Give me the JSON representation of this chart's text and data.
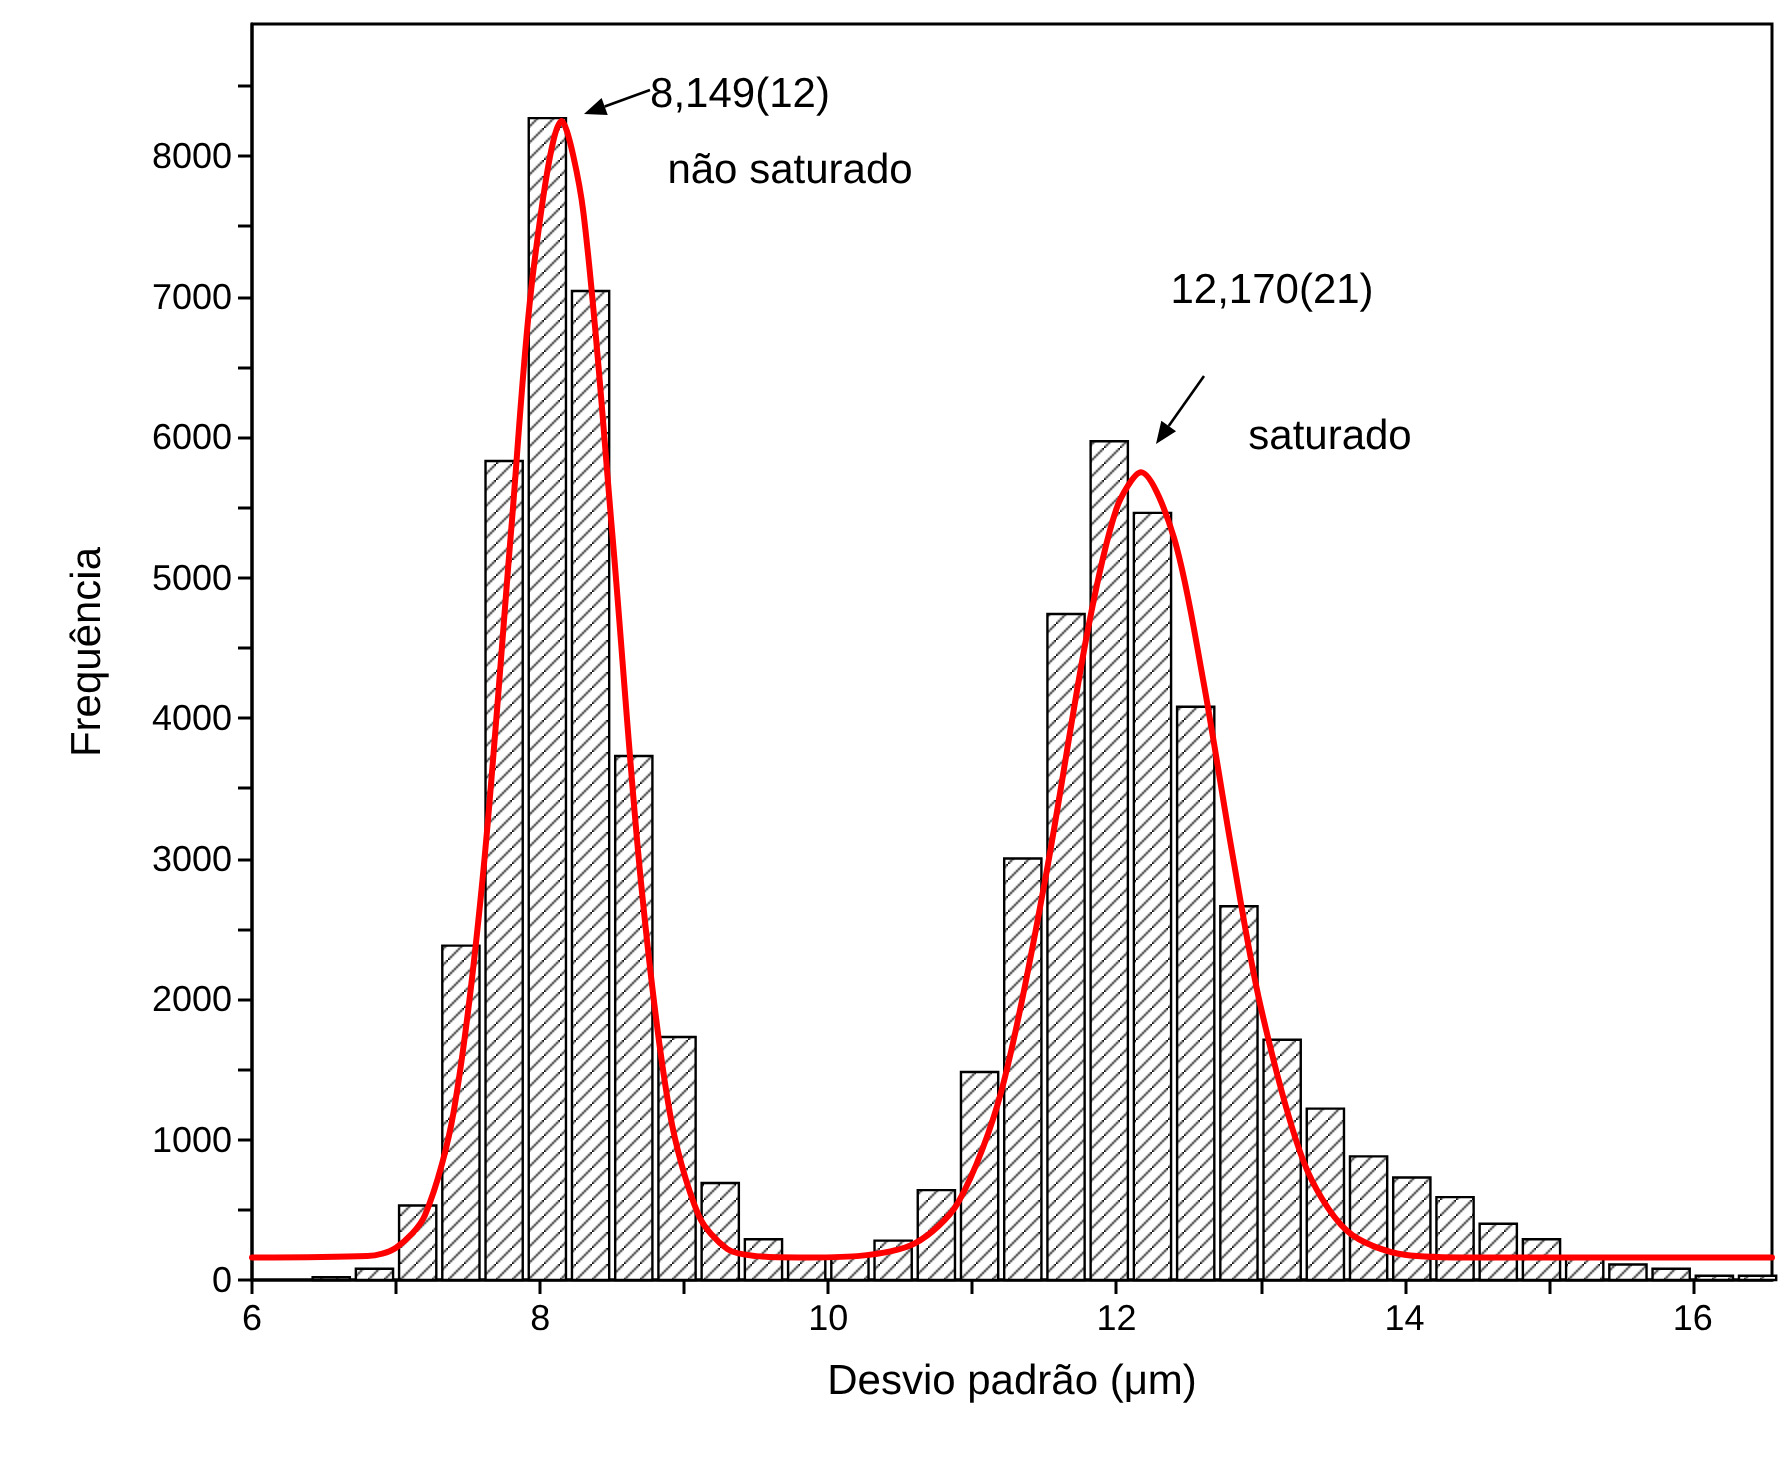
{
  "chart_data": {
    "type": "histogram",
    "xlabel": "Desvio padrão (μm)",
    "ylabel": "Frequência",
    "xlim": [
      6,
      16.55
    ],
    "xticks": [
      6,
      {
        "value": 7,
        "label": null
      },
      8,
      {
        "value": 9,
        "label": null
      },
      10,
      {
        "value": 11,
        "label": null
      },
      12,
      {
        "value": 13,
        "label": null
      },
      14,
      {
        "value": 15,
        "label": null
      },
      16
    ],
    "ylim": [
      0,
      8940
    ],
    "yticks": [
      0,
      {
        "value": 500,
        "label": null
      },
      1000,
      {
        "value": 1500,
        "label": null
      },
      2000,
      {
        "value": 2500,
        "label": null
      },
      3000,
      {
        "value": 3500,
        "label": null
      },
      4000,
      {
        "value": 4500,
        "label": null
      },
      5000,
      {
        "value": 5500,
        "label": null
      },
      6000,
      {
        "value": 6500,
        "label": null
      },
      7000,
      {
        "value": 7500,
        "label": null
      },
      8000,
      {
        "value": 8500,
        "label": null
      }
    ],
    "grid": false,
    "marker": "none",
    "line_style": "solid",
    "series": [
      {
        "color": "#000000",
        "bins": [
          6.4,
          6.7,
          7.0,
          7.3,
          7.6,
          7.9,
          8.2,
          8.5,
          8.8,
          9.1,
          9.4,
          9.7,
          10.0,
          10.3,
          10.6,
          10.9,
          11.2,
          11.5,
          11.8,
          12.1,
          12.4,
          12.7,
          13.0,
          13.3,
          13.6,
          13.9,
          14.2,
          14.5,
          14.8,
          15.1,
          15.4,
          15.7,
          16.0,
          16.3,
          16.6
        ],
        "values": [
          20,
          80,
          530,
          2380,
          5830,
          8270,
          7040,
          3730,
          1730,
          690,
          290,
          160,
          170,
          280,
          640,
          1480,
          3000,
          4740,
          5970,
          5460,
          4080,
          2660,
          1710,
          1220,
          880,
          730,
          590,
          400,
          290,
          160,
          110,
          80,
          30,
          30
        ]
      },
      {
        "type": "line",
        "color": "#ff0000",
        "x": [
          6,
          6.8,
          7.0,
          7.2,
          7.4,
          7.6,
          7.8,
          7.95,
          8.149,
          8.3,
          8.5,
          8.7,
          8.9,
          9.1,
          9.3,
          9.5,
          9.8,
          10.2,
          10.6,
          10.9,
          11.2,
          11.5,
          11.8,
          12.0,
          12.17,
          12.4,
          12.6,
          12.8,
          13.0,
          13.3,
          13.6,
          14.0,
          14.5,
          16.55
        ],
        "values": [
          160,
          170,
          230,
          460,
          1200,
          2850,
          5350,
          7160,
          8250,
          7600,
          5320,
          2830,
          1190,
          460,
          220,
          170,
          160,
          170,
          260,
          550,
          1340,
          2820,
          4620,
          5490,
          5750,
          5280,
          4280,
          3060,
          1950,
          840,
          350,
          180,
          160,
          160
        ]
      }
    ],
    "annotations": [
      "8,149(12)",
      "não saturado",
      "12,170(21)",
      "saturado"
    ]
  }
}
